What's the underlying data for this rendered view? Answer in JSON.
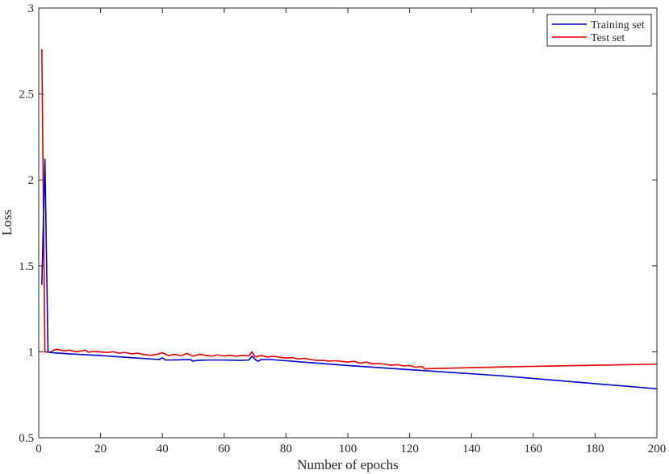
{
  "chart_data": {
    "type": "line",
    "title": "",
    "xlabel": "Number of epochs",
    "ylabel": "Loss",
    "xlim": [
      0,
      200
    ],
    "ylim": [
      0.5,
      3
    ],
    "xticks": [
      0,
      20,
      40,
      60,
      80,
      100,
      120,
      140,
      160,
      180,
      200
    ],
    "xtick_labels": [
      "0",
      "20",
      "40",
      "60",
      "80",
      "100",
      "120",
      "140",
      "160",
      "180",
      "200"
    ],
    "yticks": [
      0.5,
      1,
      1.5,
      2,
      2.5,
      3
    ],
    "ytick_labels": [
      "0.5",
      "1",
      "1.5",
      "2",
      "2.5",
      "3"
    ],
    "grid": false,
    "legend_position": "top-right",
    "series": [
      {
        "name": "Training set",
        "color": "#0000cc",
        "x": [
          1,
          2,
          3,
          4,
          10,
          20,
          30,
          39,
          40,
          41,
          45,
          49,
          50,
          51,
          55,
          60,
          65,
          68,
          69,
          70,
          71,
          72,
          75,
          80,
          100,
          125,
          150,
          175,
          200
        ],
        "y": [
          1.39,
          2.12,
          1.0,
          0.995,
          0.988,
          0.978,
          0.966,
          0.955,
          0.965,
          0.952,
          0.953,
          0.955,
          0.945,
          0.95,
          0.952,
          0.952,
          0.95,
          0.952,
          0.975,
          0.955,
          0.945,
          0.955,
          0.955,
          0.948,
          0.92,
          0.89,
          0.86,
          0.822,
          0.785
        ]
      },
      {
        "name": "Test set",
        "color": "#e00000",
        "x": [
          1,
          2,
          3,
          4,
          5,
          6,
          8,
          10,
          12,
          14,
          15,
          16,
          18,
          20,
          22,
          24,
          26,
          28,
          30,
          32,
          34,
          36,
          38,
          40,
          42,
          44,
          46,
          48,
          50,
          52,
          54,
          56,
          58,
          60,
          62,
          64,
          66,
          68,
          69,
          70,
          72,
          74,
          76,
          78,
          80,
          82,
          84,
          86,
          88,
          90,
          92,
          94,
          96,
          98,
          100,
          102,
          104,
          106,
          108,
          110,
          112,
          114,
          116,
          118,
          120,
          122,
          124,
          125,
          126,
          150,
          175,
          200
        ],
        "y": [
          2.76,
          1.0,
          0.998,
          1.0,
          1.01,
          1.015,
          1.006,
          1.01,
          1.0,
          1.005,
          1.01,
          0.998,
          1.002,
          1.0,
          0.996,
          1.0,
          0.992,
          0.996,
          0.988,
          0.992,
          0.984,
          0.98,
          0.984,
          0.995,
          0.978,
          0.985,
          0.978,
          0.99,
          0.975,
          0.985,
          0.98,
          0.975,
          0.982,
          0.976,
          0.98,
          0.974,
          0.98,
          0.976,
          1.0,
          0.97,
          0.978,
          0.97,
          0.974,
          0.968,
          0.964,
          0.966,
          0.958,
          0.962,
          0.955,
          0.95,
          0.95,
          0.946,
          0.948,
          0.944,
          0.94,
          0.945,
          0.934,
          0.94,
          0.93,
          0.932,
          0.928,
          0.922,
          0.925,
          0.918,
          0.92,
          0.91,
          0.914,
          0.9,
          0.902,
          0.912,
          0.92,
          0.928
        ]
      }
    ]
  }
}
